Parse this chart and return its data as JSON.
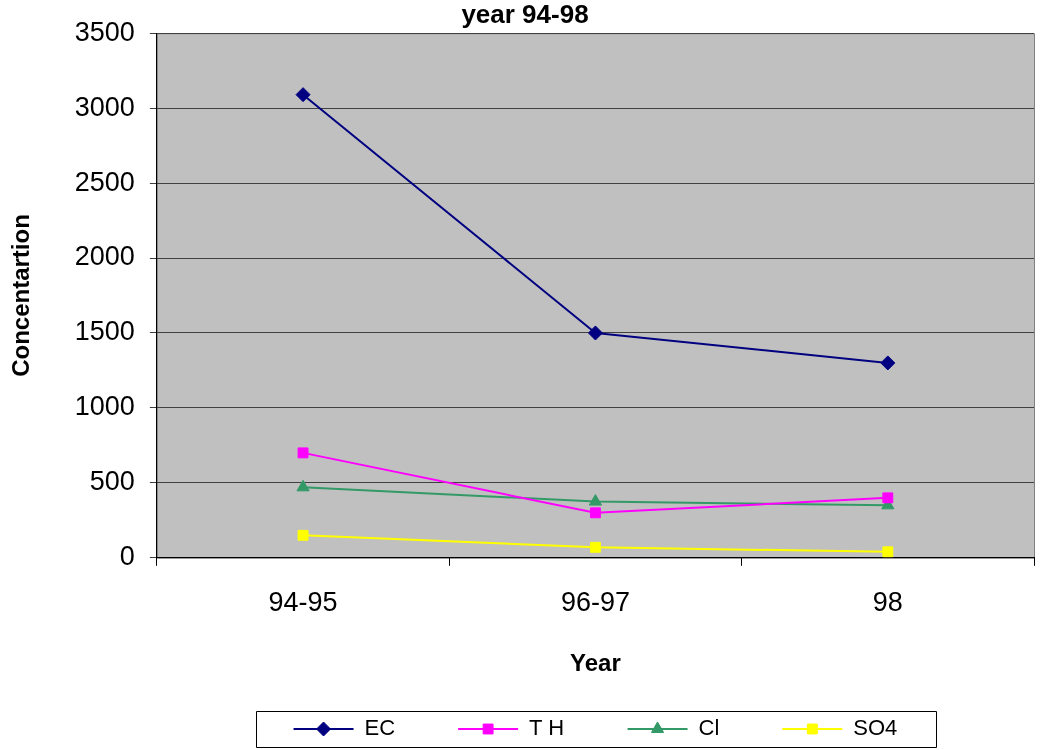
{
  "chart_data": {
    "type": "line",
    "title": "year 94-98",
    "xlabel": "Year",
    "ylabel": "Concentartion",
    "categories": [
      "94-95",
      "96-97",
      "98"
    ],
    "series": [
      {
        "name": "EC",
        "color": "#000080",
        "marker": "diamond",
        "values": [
          3090,
          1500,
          1300
        ]
      },
      {
        "name": "T H",
        "color": "#ff00ff",
        "marker": "square",
        "values": [
          700,
          300,
          400
        ]
      },
      {
        "name": "Cl",
        "color": "#339966",
        "marker": "triangle",
        "values": [
          470,
          375,
          350
        ]
      },
      {
        "name": "SO4",
        "color": "#ffff00",
        "marker": "square",
        "values": [
          150,
          70,
          40
        ]
      }
    ],
    "ylim": [
      0,
      3500
    ],
    "yticks": [
      0,
      500,
      1000,
      1500,
      2000,
      2500,
      3000,
      3500
    ],
    "grid": "y",
    "legend": "bottom",
    "line_style": "solid"
  }
}
